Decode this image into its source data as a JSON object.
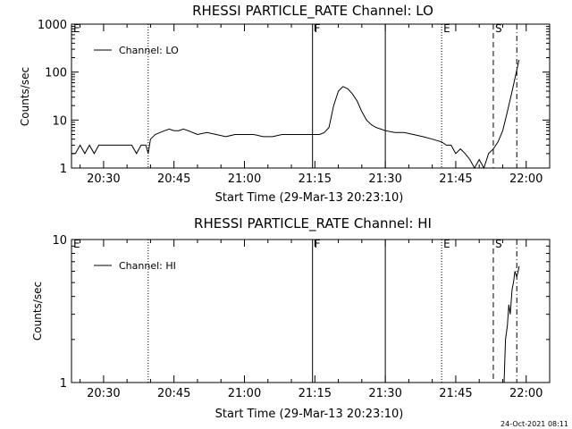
{
  "chart_data": [
    {
      "type": "line",
      "title": "RHESSI PARTICLE_RATE Channel: LO",
      "xlabel": "Start Time (29-Mar-13 20:23:10)",
      "ylabel": "Counts/sec",
      "x_ticks": [
        "20:30",
        "20:45",
        "21:00",
        "21:15",
        "21:30",
        "21:45",
        "22:00"
      ],
      "x_tick_minutes": [
        30,
        45,
        60,
        75,
        90,
        105,
        120
      ],
      "xlim_minutes": [
        23.17,
        125
      ],
      "y_scale": "log",
      "ylim": [
        1,
        1000
      ],
      "y_ticks": [
        "1",
        "10",
        "100",
        "1000"
      ],
      "y_tick_values": [
        1,
        10,
        100,
        1000
      ],
      "legend": [
        "Channel: LO"
      ],
      "legend_position": "top-left",
      "markers": [
        {
          "label": "E",
          "minute": 23.17,
          "style": "none"
        },
        {
          "label": "",
          "minute": 39.5,
          "style": "dotted"
        },
        {
          "label": "F",
          "minute": 74.5,
          "style": "solid"
        },
        {
          "label": "",
          "minute": 90.0,
          "style": "solid"
        },
        {
          "label": "E",
          "minute": 102.0,
          "style": "dotted"
        },
        {
          "label": "S",
          "minute": 113.0,
          "style": "dashed"
        },
        {
          "label": "",
          "minute": 118.0,
          "style": "dashdot"
        }
      ],
      "series": [
        {
          "name": "Channel: LO",
          "x_minutes": [
            23.17,
            24,
            25,
            26,
            27,
            28,
            29,
            30,
            31,
            32,
            33,
            34,
            35,
            36,
            37,
            38,
            39,
            39.5,
            40,
            41,
            42,
            43,
            44,
            45,
            46,
            47,
            48,
            50,
            52,
            54,
            56,
            58,
            60,
            62,
            64,
            66,
            68,
            70,
            72,
            74,
            76,
            77,
            78,
            79,
            80,
            81,
            82,
            83,
            84,
            85,
            86,
            87,
            88,
            89,
            90,
            92,
            94,
            96,
            98,
            100,
            102,
            103,
            104,
            105,
            106,
            107,
            108,
            109,
            110,
            111,
            112,
            113,
            114,
            115,
            116,
            117,
            118,
            118.5
          ],
          "values": [
            2,
            2,
            3,
            2,
            3,
            2,
            3,
            3,
            3,
            3,
            3,
            3,
            3,
            3,
            2,
            3,
            3,
            2,
            4,
            5,
            5.5,
            6,
            6.5,
            6,
            6,
            6.5,
            6,
            5,
            5.5,
            5,
            4.5,
            5,
            5,
            5,
            4.5,
            4.5,
            5,
            5,
            5,
            5,
            5,
            5.5,
            7,
            20,
            40,
            50,
            45,
            35,
            25,
            15,
            10,
            8,
            7,
            6.5,
            6,
            5.5,
            5.5,
            5,
            4.5,
            4,
            3.5,
            3,
            3,
            2,
            2.5,
            2,
            1.5,
            1,
            1.5,
            1,
            2,
            2.5,
            3.5,
            6,
            15,
            40,
            110,
            180
          ]
        }
      ]
    },
    {
      "type": "line",
      "title": "RHESSI PARTICLE_RATE Channel: HI",
      "xlabel": "Start Time (29-Mar-13 20:23:10)",
      "ylabel": "Counts/sec",
      "x_ticks": [
        "20:30",
        "20:45",
        "21:00",
        "21:15",
        "21:30",
        "21:45",
        "22:00"
      ],
      "x_tick_minutes": [
        30,
        45,
        60,
        75,
        90,
        105,
        120
      ],
      "xlim_minutes": [
        23.17,
        125
      ],
      "y_scale": "log",
      "ylim": [
        1,
        10
      ],
      "y_ticks": [
        "1",
        "10"
      ],
      "y_tick_values": [
        1,
        10
      ],
      "legend": [
        "Channel: HI"
      ],
      "legend_position": "top-left",
      "markers": [
        {
          "label": "E",
          "minute": 23.17,
          "style": "none"
        },
        {
          "label": "",
          "minute": 39.5,
          "style": "dotted"
        },
        {
          "label": "F",
          "minute": 74.5,
          "style": "solid"
        },
        {
          "label": "",
          "minute": 90.0,
          "style": "solid"
        },
        {
          "label": "E",
          "minute": 102.0,
          "style": "dotted"
        },
        {
          "label": "S",
          "minute": 113.0,
          "style": "dashed"
        },
        {
          "label": "",
          "minute": 118.0,
          "style": "dashdot"
        }
      ],
      "series": [
        {
          "name": "Channel: HI",
          "x_minutes": [
            115.3,
            115.6,
            116.0,
            116.3,
            116.6,
            117.0,
            117.3,
            117.6,
            118.0,
            118.3,
            118.5
          ],
          "values": [
            1,
            2,
            2.5,
            3.5,
            3,
            4.5,
            5,
            6,
            5.5,
            6,
            6.5
          ]
        }
      ]
    }
  ],
  "footer": {
    "timestamp": "24-Oct-2021 08:11"
  }
}
